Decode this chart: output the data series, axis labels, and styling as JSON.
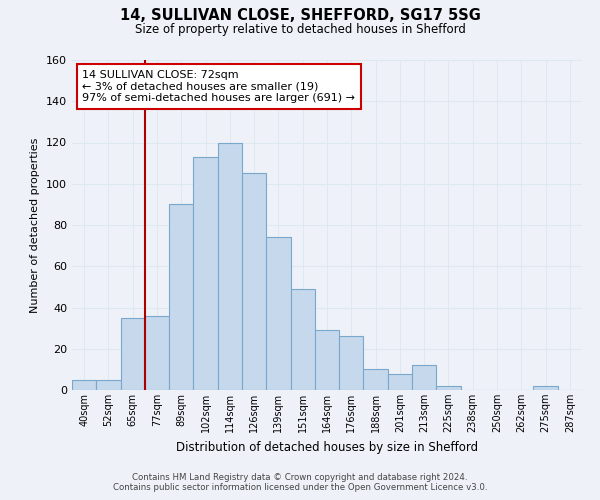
{
  "title": "14, SULLIVAN CLOSE, SHEFFORD, SG17 5SG",
  "subtitle": "Size of property relative to detached houses in Shefford",
  "xlabel": "Distribution of detached houses by size in Shefford",
  "ylabel": "Number of detached properties",
  "bin_labels": [
    "40sqm",
    "52sqm",
    "65sqm",
    "77sqm",
    "89sqm",
    "102sqm",
    "114sqm",
    "126sqm",
    "139sqm",
    "151sqm",
    "164sqm",
    "176sqm",
    "188sqm",
    "201sqm",
    "213sqm",
    "225sqm",
    "238sqm",
    "250sqm",
    "262sqm",
    "275sqm",
    "287sqm"
  ],
  "bar_heights": [
    5,
    5,
    35,
    36,
    90,
    113,
    120,
    105,
    74,
    49,
    29,
    26,
    10,
    8,
    12,
    2,
    0,
    0,
    0,
    2,
    0
  ],
  "bar_color": "#c5d8ec",
  "bar_edge_color": "#7aa8cc",
  "vline_x_index": 3,
  "vline_color": "#aa0000",
  "annotation_text": "14 SULLIVAN CLOSE: 72sqm\n← 3% of detached houses are smaller (19)\n97% of semi-detached houses are larger (691) →",
  "annotation_box_color": "#ffffff",
  "annotation_box_edge": "#cc0000",
  "ylim": [
    0,
    160
  ],
  "yticks": [
    0,
    20,
    40,
    60,
    80,
    100,
    120,
    140,
    160
  ],
  "grid_color": "#dde8f0",
  "footer_line1": "Contains HM Land Registry data © Crown copyright and database right 2024.",
  "footer_line2": "Contains public sector information licensed under the Open Government Licence v3.0.",
  "bg_color": "#eef2f8"
}
